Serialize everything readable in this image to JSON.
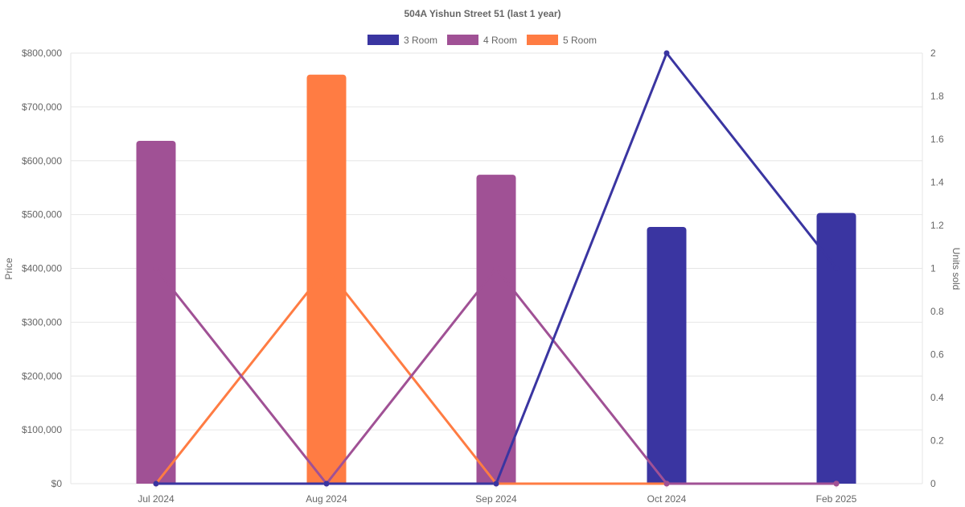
{
  "chart_data": {
    "type": "bar",
    "title": "504A Yishun Street 51 (last 1 year)",
    "categories": [
      "Jul 2024",
      "Aug 2024",
      "Sep 2024",
      "Oct 2024",
      "Feb 2025"
    ],
    "y_left": {
      "label": "Price",
      "ylim": [
        0,
        800000
      ],
      "ticks": [
        "$0",
        "$100,000",
        "$200,000",
        "$300,000",
        "$400,000",
        "$500,000",
        "$600,000",
        "$700,000",
        "$800,000"
      ]
    },
    "y_right": {
      "label": "Units sold",
      "ylim": [
        0,
        2
      ],
      "ticks": [
        "0",
        "0.2",
        "0.4",
        "0.6",
        "0.8",
        "1",
        "1.2",
        "1.4",
        "1.6",
        "1.8",
        "2"
      ]
    },
    "legend_position": "top-center",
    "grid": true,
    "series": [
      {
        "name": "3 Room",
        "color": "#3a35a1",
        "price": [
          null,
          null,
          null,
          477000,
          503000
        ],
        "units_sold": [
          0,
          0,
          0,
          2,
          1
        ]
      },
      {
        "name": "4 Room",
        "color": "#a05195",
        "price": [
          637000,
          null,
          574000,
          null,
          null
        ],
        "units_sold": [
          1,
          0,
          1,
          0,
          0
        ]
      },
      {
        "name": "5 Room",
        "color": "#ff7c43",
        "price": [
          null,
          760000,
          null,
          null,
          null
        ],
        "units_sold": [
          0,
          1,
          0,
          0,
          0
        ]
      }
    ]
  }
}
